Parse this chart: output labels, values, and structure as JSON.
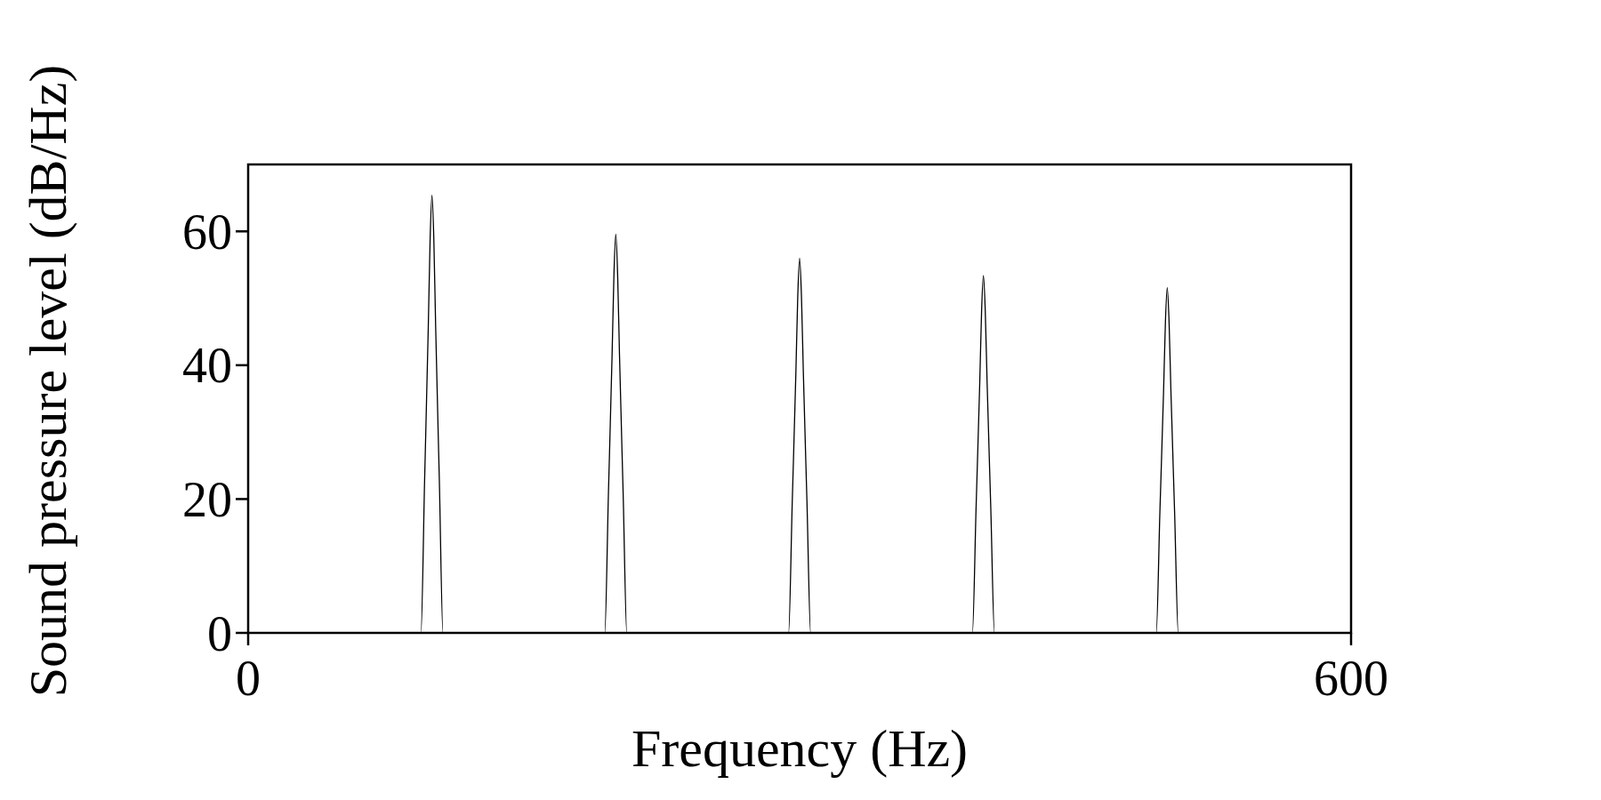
{
  "chart_data": {
    "type": "line",
    "xlabel": "Frequency (Hz)",
    "ylabel": "Sound pressure level (dB/Hz)",
    "x": [
      0,
      94,
      96,
      98,
      99,
      100,
      101,
      102,
      104,
      106,
      194,
      196,
      198,
      199,
      200,
      201,
      202,
      204,
      206,
      294,
      296,
      298,
      299,
      300,
      301,
      302,
      304,
      306,
      394,
      396,
      398,
      399,
      400,
      401,
      402,
      404,
      406,
      494,
      496,
      498,
      499,
      500,
      501,
      502,
      504,
      506,
      600
    ],
    "series": [
      {
        "color": "#000000",
        "values": [
          0,
          0,
          22.9,
          45.8,
          58.9,
          65.4,
          58.9,
          45.8,
          22.9,
          0,
          0,
          20.9,
          41.7,
          53.6,
          59.6,
          53.6,
          41.7,
          20.9,
          0,
          0,
          19.6,
          39.2,
          50.4,
          56,
          50.4,
          39.2,
          19.6,
          0,
          0,
          18.7,
          37.4,
          48.1,
          53.4,
          48.1,
          37.4,
          18.7,
          0,
          0,
          18.1,
          36.1,
          46.4,
          51.6,
          46.4,
          36.1,
          18.1,
          0,
          0
        ]
      }
    ],
    "xlim": [
      0,
      600
    ],
    "ylim": [
      0,
      70
    ],
    "xticks": [
      0,
      600
    ],
    "yticks": [
      0,
      20,
      40,
      60
    ],
    "grid": false,
    "marker": "none",
    "line_style": "solid"
  }
}
